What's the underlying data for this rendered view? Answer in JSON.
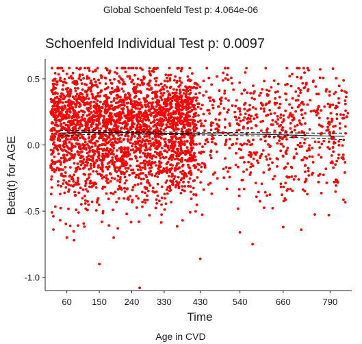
{
  "suptitle": "Global Schoenfeld Test p: 4.064e-06",
  "footer": "Age in CVD",
  "chart_data": {
    "type": "scatter",
    "title": "Schoenfeld Individual Test p: 0.0097",
    "xlabel": "Time",
    "ylabel": "Beta(t) for AGE",
    "xlim": [
      0,
      850
    ],
    "ylim": [
      -1.1,
      0.65
    ],
    "xticks": [
      "60",
      "150",
      "240",
      "330",
      "430",
      "540",
      "660",
      "790"
    ],
    "yticks": [
      "0.5",
      "0.0",
      "-0.5",
      "-1.0"
    ],
    "point_color": "#ff0000",
    "grid": false,
    "point_cloud": {
      "n": 3400,
      "x_range": [
        15,
        840
      ],
      "dense_range": [
        15,
        420
      ],
      "y_center": 0.15,
      "y_spread": 0.2,
      "y_range": [
        -1.08,
        0.58
      ]
    },
    "outliers": [
      {
        "x": 150,
        "y": -0.9
      },
      {
        "x": 262,
        "y": -1.08
      },
      {
        "x": 430,
        "y": -0.86
      },
      {
        "x": 540,
        "y": -0.66
      },
      {
        "x": 660,
        "y": -0.62
      },
      {
        "x": 710,
        "y": -0.64
      },
      {
        "x": 60,
        "y": -0.7
      },
      {
        "x": 80,
        "y": -0.72
      },
      {
        "x": 190,
        "y": -0.7
      },
      {
        "x": 575,
        "y": -0.75
      },
      {
        "x": 370,
        "y": 0.58
      },
      {
        "x": 110,
        "y": 0.58
      },
      {
        "x": 50,
        "y": 0.56
      },
      {
        "x": 180,
        "y": 0.56
      },
      {
        "x": 710,
        "y": 0.51
      },
      {
        "x": 780,
        "y": 0.42
      }
    ],
    "fit_line": {
      "x": [
        40,
        150,
        300,
        450,
        600,
        750,
        830
      ],
      "y": [
        0.09,
        0.095,
        0.09,
        0.085,
        0.08,
        0.07,
        0.065
      ]
    },
    "ci_upper": {
      "x": [
        40,
        150,
        300,
        450,
        600,
        750,
        830
      ],
      "y": [
        0.11,
        0.108,
        0.1,
        0.095,
        0.092,
        0.09,
        0.09
      ]
    },
    "ci_lower": {
      "x": [
        40,
        150,
        300,
        450,
        600,
        750,
        830
      ],
      "y": [
        0.07,
        0.082,
        0.08,
        0.075,
        0.068,
        0.05,
        0.04
      ]
    }
  }
}
